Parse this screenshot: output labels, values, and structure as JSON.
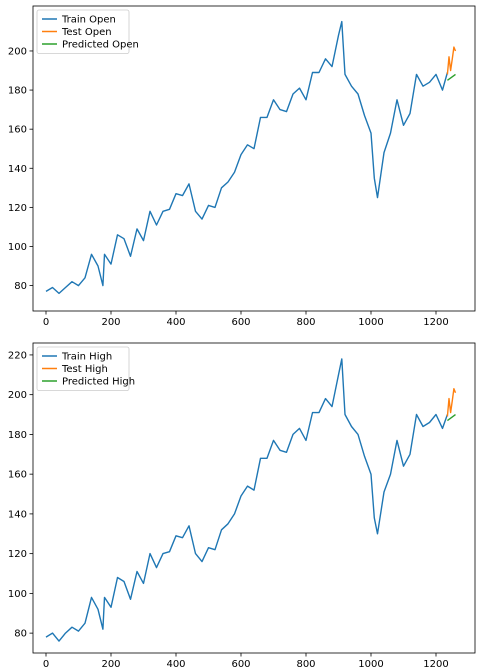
{
  "colors": {
    "train": "#1f77b4",
    "test": "#ff7f0e",
    "predicted": "#2ca02c"
  },
  "chart_data": [
    {
      "type": "line",
      "title": "",
      "xlabel": "",
      "ylabel": "",
      "xlim": [
        -40,
        1320
      ],
      "ylim": [
        67,
        223
      ],
      "xticks": [
        0,
        200,
        400,
        600,
        800,
        1000,
        1200
      ],
      "yticks": [
        80,
        100,
        120,
        140,
        160,
        180,
        200
      ],
      "grid": false,
      "legend_position": "top-left",
      "series": [
        {
          "name": "Train Open",
          "color": "#1f77b4",
          "x": [
            0,
            20,
            40,
            60,
            80,
            100,
            120,
            140,
            160,
            175,
            180,
            200,
            220,
            240,
            260,
            280,
            300,
            320,
            340,
            360,
            380,
            400,
            420,
            440,
            460,
            480,
            500,
            520,
            540,
            560,
            580,
            600,
            620,
            640,
            660,
            680,
            700,
            720,
            740,
            760,
            780,
            800,
            820,
            840,
            860,
            880,
            900,
            910,
            920,
            940,
            960,
            980,
            1000,
            1010,
            1020,
            1040,
            1060,
            1080,
            1100,
            1120,
            1140,
            1160,
            1180,
            1200,
            1220,
            1235
          ],
          "y": [
            77,
            79,
            76,
            79,
            82,
            80,
            84,
            96,
            90,
            80,
            96,
            91,
            106,
            104,
            95,
            109,
            103,
            118,
            111,
            118,
            119,
            127,
            126,
            132,
            118,
            114,
            121,
            120,
            130,
            133,
            138,
            147,
            152,
            150,
            166,
            166,
            175,
            170,
            169,
            178,
            181,
            175,
            189,
            189,
            196,
            192,
            208,
            215,
            188,
            182,
            178,
            167,
            158,
            135,
            125,
            148,
            158,
            175,
            162,
            168,
            188,
            182,
            184,
            188,
            180,
            189
          ]
        },
        {
          "name": "Test Open",
          "color": "#ff7f0e",
          "x": [
            1235,
            1240,
            1245,
            1250,
            1255,
            1260
          ],
          "y": [
            188,
            197,
            190,
            196,
            202,
            200
          ]
        },
        {
          "name": "Predicted Open",
          "color": "#2ca02c",
          "x": [
            1235,
            1260
          ],
          "y": [
            185,
            188
          ]
        }
      ]
    },
    {
      "type": "line",
      "title": "",
      "xlabel": "",
      "ylabel": "",
      "xlim": [
        -40,
        1320
      ],
      "ylim": [
        70,
        226
      ],
      "xticks": [
        0,
        200,
        400,
        600,
        800,
        1000,
        1200
      ],
      "yticks": [
        80,
        100,
        120,
        140,
        160,
        180,
        200,
        220
      ],
      "grid": false,
      "legend_position": "top-left",
      "series": [
        {
          "name": "Train High",
          "color": "#1f77b4",
          "x": [
            0,
            20,
            40,
            60,
            80,
            100,
            120,
            140,
            160,
            175,
            180,
            200,
            220,
            240,
            260,
            280,
            300,
            320,
            340,
            360,
            380,
            400,
            420,
            440,
            460,
            480,
            500,
            520,
            540,
            560,
            580,
            600,
            620,
            640,
            660,
            680,
            700,
            720,
            740,
            760,
            780,
            800,
            820,
            840,
            860,
            880,
            900,
            910,
            920,
            940,
            960,
            980,
            1000,
            1010,
            1020,
            1040,
            1060,
            1080,
            1100,
            1120,
            1140,
            1160,
            1180,
            1200,
            1220,
            1235
          ],
          "y": [
            78,
            80,
            76,
            80,
            83,
            81,
            85,
            98,
            92,
            82,
            98,
            93,
            108,
            106,
            97,
            111,
            105,
            120,
            113,
            120,
            121,
            129,
            128,
            134,
            120,
            116,
            123,
            122,
            132,
            135,
            140,
            149,
            154,
            152,
            168,
            168,
            177,
            172,
            171,
            180,
            183,
            177,
            191,
            191,
            198,
            194,
            210,
            218,
            190,
            184,
            180,
            169,
            160,
            138,
            130,
            151,
            160,
            177,
            164,
            170,
            190,
            184,
            186,
            190,
            183,
            190
          ]
        },
        {
          "name": "Test High",
          "color": "#ff7f0e",
          "x": [
            1235,
            1240,
            1245,
            1250,
            1255,
            1260
          ],
          "y": [
            189,
            198,
            191,
            197,
            203,
            201
          ]
        },
        {
          "name": "Predicted High",
          "color": "#2ca02c",
          "x": [
            1235,
            1260
          ],
          "y": [
            187,
            190
          ]
        }
      ]
    }
  ]
}
